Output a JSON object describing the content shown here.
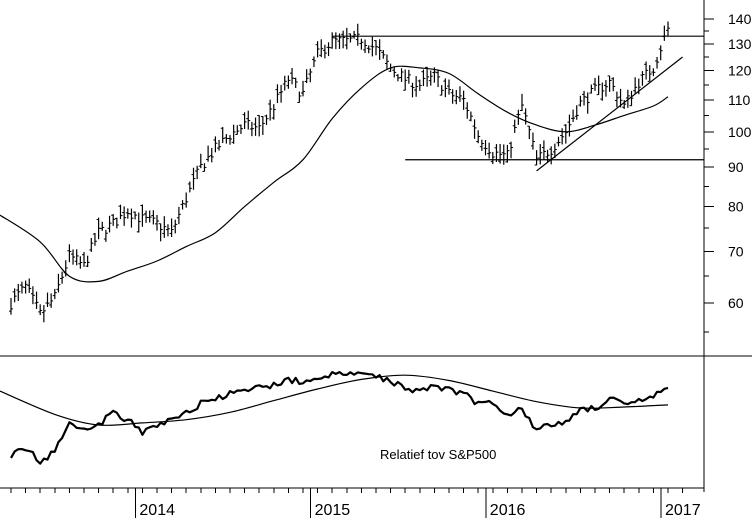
{
  "chart_data": [
    {
      "type": "ohlc",
      "title": "",
      "xlabel": "",
      "ylabel": "",
      "y_scale": "log",
      "ylim": [
        53,
        145
      ],
      "y_ticks": [
        60,
        70,
        80,
        90,
        100,
        110,
        120,
        130,
        140
      ],
      "x_ticks": [
        "2014",
        "2015",
        "2016",
        "2017"
      ],
      "x_range": [
        "2013-04",
        "2017-02"
      ],
      "grid": false,
      "legend": "none",
      "series": [
        {
          "style": "weekly-bars",
          "x": [
            "2013-04",
            "2013-05",
            "2013-06",
            "2013-07",
            "2013-08",
            "2013-09",
            "2013-10",
            "2013-11",
            "2013-12",
            "2014-01",
            "2014-02",
            "2014-03",
            "2014-04",
            "2014-05",
            "2014-06",
            "2014-07",
            "2014-08",
            "2014-09",
            "2014-10",
            "2014-11",
            "2014-12",
            "2015-01",
            "2015-02",
            "2015-03",
            "2015-04",
            "2015-05",
            "2015-06",
            "2015-07",
            "2015-08",
            "2015-09",
            "2015-10",
            "2015-11",
            "2015-12",
            "2016-01",
            "2016-02",
            "2016-03",
            "2016-04",
            "2016-05",
            "2016-06",
            "2016-07",
            "2016-08",
            "2016-09",
            "2016-10",
            "2016-11",
            "2016-12",
            "2017-01"
          ],
          "values": [
            60,
            63,
            58,
            61,
            69,
            67,
            74,
            76,
            79,
            77,
            76,
            74,
            82,
            90,
            95,
            99,
            102,
            101,
            108,
            117,
            112,
            126,
            131,
            131,
            132,
            128,
            121,
            117,
            115,
            118,
            112,
            110,
            99,
            94,
            93,
            108,
            92,
            95,
            100,
            109,
            113,
            116,
            108,
            116,
            121,
            136
          ]
        },
        {
          "style": "moving-average",
          "x": [
            "2013-04",
            "2013-06",
            "2013-08",
            "2013-10",
            "2013-12",
            "2014-02",
            "2014-04",
            "2014-06",
            "2014-08",
            "2014-10",
            "2014-12",
            "2015-02",
            "2015-04",
            "2015-06",
            "2015-08",
            "2015-10",
            "2015-12",
            "2016-02",
            "2016-04",
            "2016-06",
            "2016-08",
            "2016-10",
            "2016-12",
            "2017-01"
          ],
          "values": [
            78,
            72,
            65,
            64,
            66,
            68,
            71,
            74,
            80,
            86,
            92,
            104,
            114,
            121,
            121,
            119,
            112,
            106,
            102,
            100,
            102,
            105,
            108,
            111
          ]
        }
      ],
      "annotations": [
        {
          "type": "horizontal-line",
          "y": 133,
          "from": "2015-02",
          "to": "2017-01"
        },
        {
          "type": "horizontal-line",
          "y": 92,
          "from": "2015-07",
          "to": "2017-01"
        },
        {
          "type": "trend-line",
          "from": [
            "2016-04",
            89
          ],
          "to": [
            "2017-02",
            125
          ]
        }
      ]
    },
    {
      "type": "line",
      "title": "Relatief tov S&P500",
      "xlabel": "",
      "ylabel": "",
      "x_ticks": [
        "2014",
        "2015",
        "2016",
        "2017"
      ],
      "grid": false,
      "legend": "none",
      "series": [
        {
          "style": "relative-strength",
          "x": [
            "2013-04",
            "2013-05",
            "2013-06",
            "2013-07",
            "2013-08",
            "2013-09",
            "2013-10",
            "2013-11",
            "2013-12",
            "2014-01",
            "2014-02",
            "2014-03",
            "2014-04",
            "2014-05",
            "2014-06",
            "2014-07",
            "2014-08",
            "2014-09",
            "2014-10",
            "2014-11",
            "2014-12",
            "2015-01",
            "2015-02",
            "2015-03",
            "2015-04",
            "2015-05",
            "2015-06",
            "2015-07",
            "2015-08",
            "2015-09",
            "2015-10",
            "2015-11",
            "2015-12",
            "2016-01",
            "2016-02",
            "2016-03",
            "2016-04",
            "2016-05",
            "2016-06",
            "2016-07",
            "2016-08",
            "2016-09",
            "2016-10",
            "2016-11",
            "2016-12",
            "2017-01"
          ],
          "values": [
            0.22,
            0.28,
            0.15,
            0.25,
            0.55,
            0.45,
            0.5,
            0.62,
            0.55,
            0.42,
            0.5,
            0.55,
            0.62,
            0.7,
            0.75,
            0.79,
            0.82,
            0.85,
            0.88,
            0.93,
            0.9,
            0.95,
            0.97,
            0.98,
            0.98,
            0.96,
            0.92,
            0.85,
            0.82,
            0.88,
            0.83,
            0.8,
            0.7,
            0.72,
            0.6,
            0.66,
            0.45,
            0.5,
            0.53,
            0.65,
            0.66,
            0.75,
            0.68,
            0.72,
            0.77,
            0.86
          ]
        },
        {
          "style": "moving-average",
          "x": [
            "2013-04",
            "2013-07",
            "2013-10",
            "2014-01",
            "2014-04",
            "2014-07",
            "2014-10",
            "2015-01",
            "2015-04",
            "2015-07",
            "2015-10",
            "2016-01",
            "2016-04",
            "2016-07",
            "2016-10",
            "2017-01"
          ],
          "values": [
            0.82,
            0.6,
            0.5,
            0.52,
            0.55,
            0.62,
            0.73,
            0.84,
            0.93,
            0.97,
            0.92,
            0.82,
            0.72,
            0.66,
            0.67,
            0.69
          ]
        }
      ]
    }
  ]
}
